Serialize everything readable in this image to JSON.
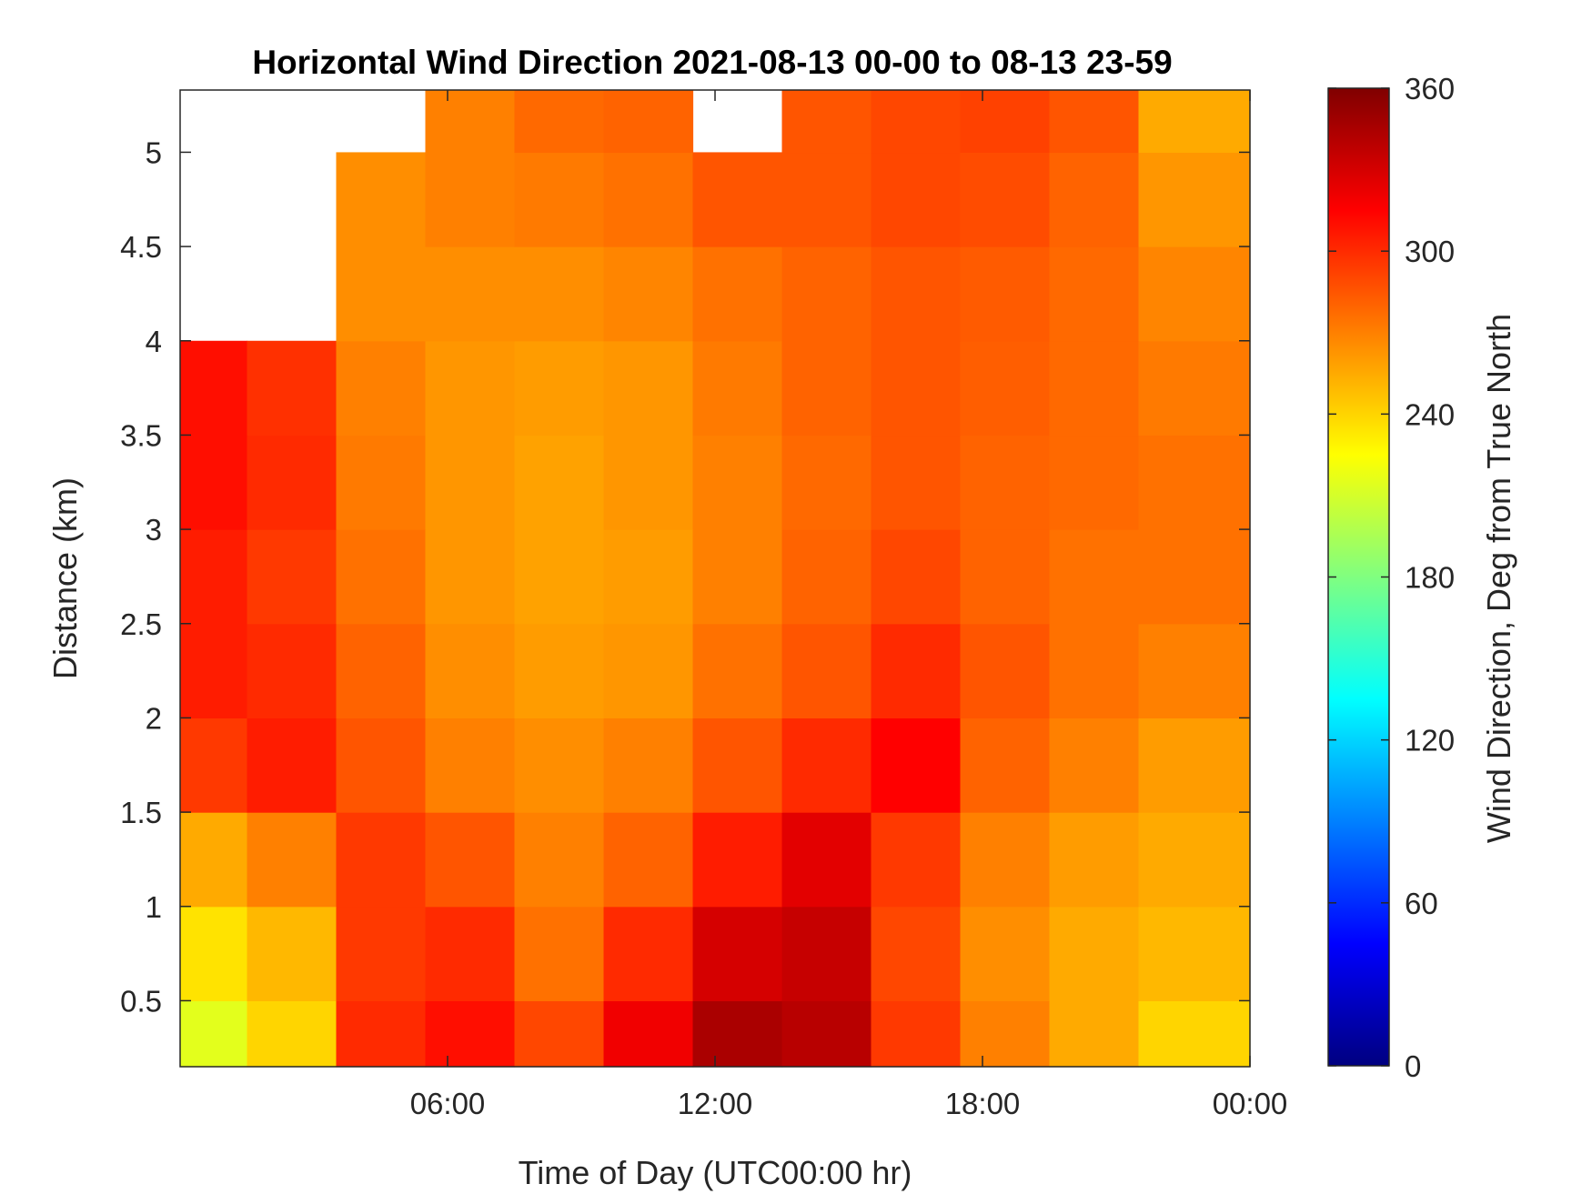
{
  "chart_data": {
    "type": "heatmap",
    "title": "Horizontal Wind Direction 2021-08-13 00-00 to 08-13 23-59",
    "xlabel": "Time of Day (UTC00:00 hr)",
    "ylabel": "Distance (km)",
    "colorbar_label": "Wind Direction, Deg from True North",
    "colormap": "jet",
    "x_unit": "hour of day (UTC)",
    "xlim": [
      0,
      24
    ],
    "ylim": [
      0.15,
      5.33
    ],
    "clim": [
      0,
      360
    ],
    "x_ticks": [
      {
        "value": 6,
        "label": "06:00"
      },
      {
        "value": 12,
        "label": "12:00"
      },
      {
        "value": 18,
        "label": "18:00"
      },
      {
        "value": 24,
        "label": "00:00"
      }
    ],
    "y_ticks": [
      {
        "value": 0.5,
        "label": "0.5"
      },
      {
        "value": 1,
        "label": "1"
      },
      {
        "value": 1.5,
        "label": "1.5"
      },
      {
        "value": 2,
        "label": "2"
      },
      {
        "value": 2.5,
        "label": "2.5"
      },
      {
        "value": 3,
        "label": "3"
      },
      {
        "value": 3.5,
        "label": "3.5"
      },
      {
        "value": 4,
        "label": "4"
      },
      {
        "value": 4.5,
        "label": "4.5"
      },
      {
        "value": 5,
        "label": "5"
      }
    ],
    "colorbar_ticks": [
      {
        "value": 0,
        "label": "0"
      },
      {
        "value": 60,
        "label": "60"
      },
      {
        "value": 120,
        "label": "120"
      },
      {
        "value": 180,
        "label": "180"
      },
      {
        "value": 240,
        "label": "240"
      },
      {
        "value": 300,
        "label": "300"
      },
      {
        "value": 360,
        "label": "360"
      }
    ],
    "value_grid": {
      "x": [
        0.5,
        2.5,
        4.5,
        6.5,
        8.5,
        10.5,
        12.5,
        14.5,
        16.5,
        18.5,
        20.5,
        22.5
      ],
      "y": [
        0.25,
        0.75,
        1.25,
        1.75,
        2.25,
        2.75,
        3.25,
        3.75,
        4.25,
        4.75,
        5.25
      ],
      "z": [
        [
          215,
          240,
          300,
          310,
          290,
          320,
          345,
          340,
          295,
          270,
          255,
          240
        ],
        [
          235,
          250,
          295,
          300,
          275,
          300,
          330,
          335,
          290,
          265,
          255,
          250
        ],
        [
          255,
          270,
          295,
          285,
          270,
          280,
          305,
          325,
          295,
          270,
          260,
          255
        ],
        [
          295,
          305,
          285,
          270,
          265,
          270,
          285,
          300,
          315,
          280,
          270,
          260
        ],
        [
          305,
          300,
          280,
          265,
          260,
          262,
          275,
          285,
          300,
          285,
          275,
          270
        ],
        [
          305,
          295,
          275,
          262,
          258,
          260,
          270,
          280,
          290,
          280,
          275,
          275
        ],
        [
          310,
          300,
          272,
          262,
          258,
          262,
          270,
          278,
          285,
          280,
          278,
          275
        ],
        [
          310,
          298,
          270,
          262,
          260,
          262,
          272,
          280,
          285,
          282,
          278,
          272
        ],
        [
          null,
          null,
          265,
          265,
          265,
          268,
          275,
          280,
          285,
          283,
          278,
          268
        ],
        [
          null,
          null,
          265,
          270,
          272,
          275,
          285,
          285,
          290,
          288,
          280,
          262
        ],
        [
          null,
          null,
          null,
          270,
          278,
          280,
          null,
          285,
          290,
          292,
          285,
          255
        ]
      ]
    },
    "missing_data_color": "#ffffff"
  }
}
